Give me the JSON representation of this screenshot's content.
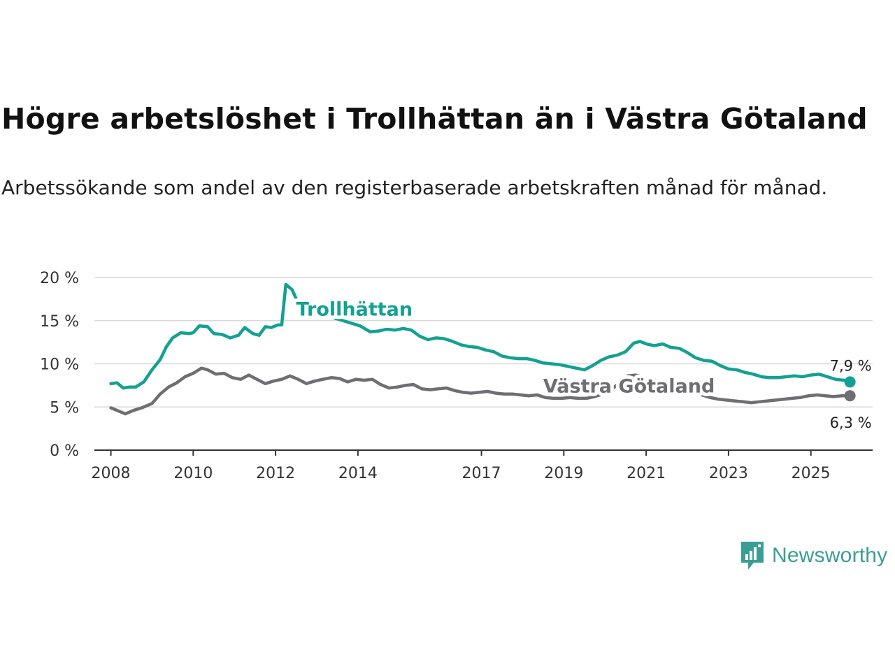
{
  "header": {
    "title": "Högre arbetslöshet i Trollhättan än i Västra Götaland",
    "subtitle": "Arbetssökande som andel av den registerbaserade arbetskraften månad för månad."
  },
  "brand": {
    "name": "Newsworthy",
    "icon": "newsworthy-logo-icon",
    "color": "#3a9e96"
  },
  "chart_data": {
    "type": "line",
    "title": "Högre arbetslöshet i Trollhättan än i Västra Götaland",
    "subtitle": "Arbetssökande som andel av den registerbaserade arbetskraften månad för månad.",
    "xlabel": "",
    "ylabel": "",
    "xlim": [
      2007.6,
      2026.5
    ],
    "ylim": [
      0,
      20
    ],
    "x_ticks": [
      2008,
      2010,
      2012,
      2014,
      2017,
      2019,
      2021,
      2023,
      2025
    ],
    "x_tick_labels": [
      "2008",
      "2010",
      "2012",
      "2014",
      "2017",
      "2019",
      "2021",
      "2023",
      "2025"
    ],
    "y_ticks": [
      0,
      5,
      10,
      15,
      20
    ],
    "y_tick_labels": [
      "0 %",
      "5 %",
      "10 %",
      "15 %",
      "20 %"
    ],
    "grid": true,
    "legend": "inline labels",
    "series": [
      {
        "name": "Trollhättan",
        "color": "#12a192",
        "end_label": "7,9 %",
        "points": [
          [
            2008.0,
            7.7
          ],
          [
            2008.15,
            7.8
          ],
          [
            2008.3,
            7.2
          ],
          [
            2008.45,
            7.3
          ],
          [
            2008.6,
            7.3
          ],
          [
            2008.8,
            7.9
          ],
          [
            2009.0,
            9.3
          ],
          [
            2009.2,
            10.5
          ],
          [
            2009.35,
            12.0
          ],
          [
            2009.5,
            13.0
          ],
          [
            2009.7,
            13.6
          ],
          [
            2009.9,
            13.5
          ],
          [
            2010.0,
            13.6
          ],
          [
            2010.15,
            14.4
          ],
          [
            2010.35,
            14.3
          ],
          [
            2010.5,
            13.5
          ],
          [
            2010.7,
            13.4
          ],
          [
            2010.9,
            13.0
          ],
          [
            2011.1,
            13.3
          ],
          [
            2011.25,
            14.2
          ],
          [
            2011.45,
            13.5
          ],
          [
            2011.6,
            13.3
          ],
          [
            2011.75,
            14.3
          ],
          [
            2011.9,
            14.2
          ],
          [
            2012.05,
            14.5
          ],
          [
            2012.15,
            14.5
          ],
          [
            2012.25,
            19.2
          ],
          [
            2012.4,
            18.6
          ],
          [
            2012.6,
            16.5
          ],
          [
            2014.05,
            14.4
          ],
          [
            2014.3,
            13.7
          ],
          [
            2014.5,
            13.8
          ],
          [
            2014.7,
            14.0
          ],
          [
            2014.9,
            13.9
          ],
          [
            2015.1,
            14.1
          ],
          [
            2015.3,
            13.9
          ],
          [
            2015.5,
            13.2
          ],
          [
            2015.7,
            12.8
          ],
          [
            2015.9,
            13.0
          ],
          [
            2016.1,
            12.9
          ],
          [
            2016.3,
            12.6
          ],
          [
            2016.5,
            12.2
          ],
          [
            2016.7,
            12.0
          ],
          [
            2016.9,
            11.9
          ],
          [
            2017.1,
            11.6
          ],
          [
            2017.3,
            11.4
          ],
          [
            2017.5,
            10.9
          ],
          [
            2017.7,
            10.7
          ],
          [
            2017.9,
            10.6
          ],
          [
            2018.1,
            10.6
          ],
          [
            2018.3,
            10.4
          ],
          [
            2018.5,
            10.1
          ],
          [
            2018.7,
            10.0
          ],
          [
            2018.9,
            9.9
          ],
          [
            2019.1,
            9.7
          ],
          [
            2019.3,
            9.5
          ],
          [
            2019.5,
            9.3
          ],
          [
            2019.7,
            9.8
          ],
          [
            2019.9,
            10.4
          ],
          [
            2020.1,
            10.8
          ],
          [
            2020.3,
            11.0
          ],
          [
            2020.5,
            11.4
          ],
          [
            2020.7,
            12.4
          ],
          [
            2020.85,
            12.6
          ],
          [
            2021.0,
            12.3
          ],
          [
            2021.2,
            12.1
          ],
          [
            2021.4,
            12.3
          ],
          [
            2021.6,
            11.9
          ],
          [
            2021.8,
            11.8
          ],
          [
            2022.0,
            11.3
          ],
          [
            2022.2,
            10.7
          ],
          [
            2022.4,
            10.4
          ],
          [
            2022.6,
            10.3
          ],
          [
            2022.8,
            9.8
          ],
          [
            2023.0,
            9.4
          ],
          [
            2023.2,
            9.3
          ],
          [
            2023.4,
            9.0
          ],
          [
            2023.6,
            8.8
          ],
          [
            2023.8,
            8.5
          ],
          [
            2024.0,
            8.4
          ],
          [
            2024.2,
            8.4
          ],
          [
            2024.4,
            8.5
          ],
          [
            2024.6,
            8.6
          ],
          [
            2024.8,
            8.5
          ],
          [
            2025.0,
            8.7
          ],
          [
            2025.2,
            8.8
          ],
          [
            2025.4,
            8.5
          ],
          [
            2025.6,
            8.2
          ],
          [
            2025.8,
            8.1
          ],
          [
            2025.95,
            7.9
          ]
        ]
      },
      {
        "name": "Västra Götaland",
        "color": "#6e6e73",
        "end_label": "6,3 %",
        "points": [
          [
            2008.0,
            4.9
          ],
          [
            2008.15,
            4.6
          ],
          [
            2008.35,
            4.2
          ],
          [
            2008.55,
            4.6
          ],
          [
            2008.75,
            4.9
          ],
          [
            2009.0,
            5.4
          ],
          [
            2009.2,
            6.5
          ],
          [
            2009.4,
            7.3
          ],
          [
            2009.6,
            7.8
          ],
          [
            2009.8,
            8.5
          ],
          [
            2010.0,
            8.9
          ],
          [
            2010.2,
            9.5
          ],
          [
            2010.35,
            9.3
          ],
          [
            2010.55,
            8.8
          ],
          [
            2010.75,
            8.9
          ],
          [
            2010.95,
            8.4
          ],
          [
            2011.15,
            8.2
          ],
          [
            2011.35,
            8.7
          ],
          [
            2011.55,
            8.2
          ],
          [
            2011.75,
            7.7
          ],
          [
            2011.95,
            8.0
          ],
          [
            2012.15,
            8.2
          ],
          [
            2012.35,
            8.6
          ],
          [
            2012.55,
            8.2
          ],
          [
            2012.75,
            7.7
          ],
          [
            2012.95,
            8.0
          ],
          [
            2013.15,
            8.2
          ],
          [
            2013.35,
            8.4
          ],
          [
            2013.55,
            8.3
          ],
          [
            2013.75,
            7.9
          ],
          [
            2013.95,
            8.2
          ],
          [
            2014.15,
            8.1
          ],
          [
            2014.35,
            8.2
          ],
          [
            2014.55,
            7.6
          ],
          [
            2014.75,
            7.2
          ],
          [
            2014.95,
            7.3
          ],
          [
            2015.15,
            7.5
          ],
          [
            2015.35,
            7.6
          ],
          [
            2015.55,
            7.1
          ],
          [
            2015.75,
            7.0
          ],
          [
            2015.95,
            7.1
          ],
          [
            2016.15,
            7.2
          ],
          [
            2016.35,
            6.9
          ],
          [
            2016.55,
            6.7
          ],
          [
            2016.75,
            6.6
          ],
          [
            2016.95,
            6.7
          ],
          [
            2017.15,
            6.8
          ],
          [
            2017.35,
            6.6
          ],
          [
            2017.55,
            6.5
          ],
          [
            2017.75,
            6.5
          ],
          [
            2017.95,
            6.4
          ],
          [
            2018.15,
            6.3
          ],
          [
            2018.35,
            6.4
          ],
          [
            2018.55,
            6.1
          ],
          [
            2018.75,
            6.0
          ],
          [
            2018.95,
            6.0
          ],
          [
            2019.15,
            6.1
          ],
          [
            2019.35,
            6.0
          ],
          [
            2019.55,
            6.0
          ],
          [
            2019.75,
            6.2
          ],
          [
            2019.95,
            6.5
          ],
          [
            2020.15,
            7.0
          ],
          [
            2020.35,
            7.8
          ],
          [
            2020.55,
            8.6
          ],
          [
            2020.75,
            8.7
          ],
          [
            2020.95,
            8.4
          ],
          [
            2021.15,
            8.2
          ],
          [
            2021.35,
            7.9
          ],
          [
            2021.55,
            7.4
          ],
          [
            2021.75,
            7.0
          ],
          [
            2021.95,
            6.8
          ],
          [
            2022.15,
            6.6
          ],
          [
            2022.35,
            6.4
          ],
          [
            2022.55,
            6.1
          ],
          [
            2022.75,
            5.9
          ],
          [
            2022.95,
            5.8
          ],
          [
            2023.15,
            5.7
          ],
          [
            2023.35,
            5.6
          ],
          [
            2023.55,
            5.5
          ],
          [
            2023.75,
            5.6
          ],
          [
            2023.95,
            5.7
          ],
          [
            2024.15,
            5.8
          ],
          [
            2024.35,
            5.9
          ],
          [
            2024.55,
            6.0
          ],
          [
            2024.75,
            6.1
          ],
          [
            2024.95,
            6.3
          ],
          [
            2025.15,
            6.4
          ],
          [
            2025.35,
            6.3
          ],
          [
            2025.55,
            6.2
          ],
          [
            2025.75,
            6.3
          ],
          [
            2025.95,
            6.3
          ]
        ]
      }
    ]
  }
}
